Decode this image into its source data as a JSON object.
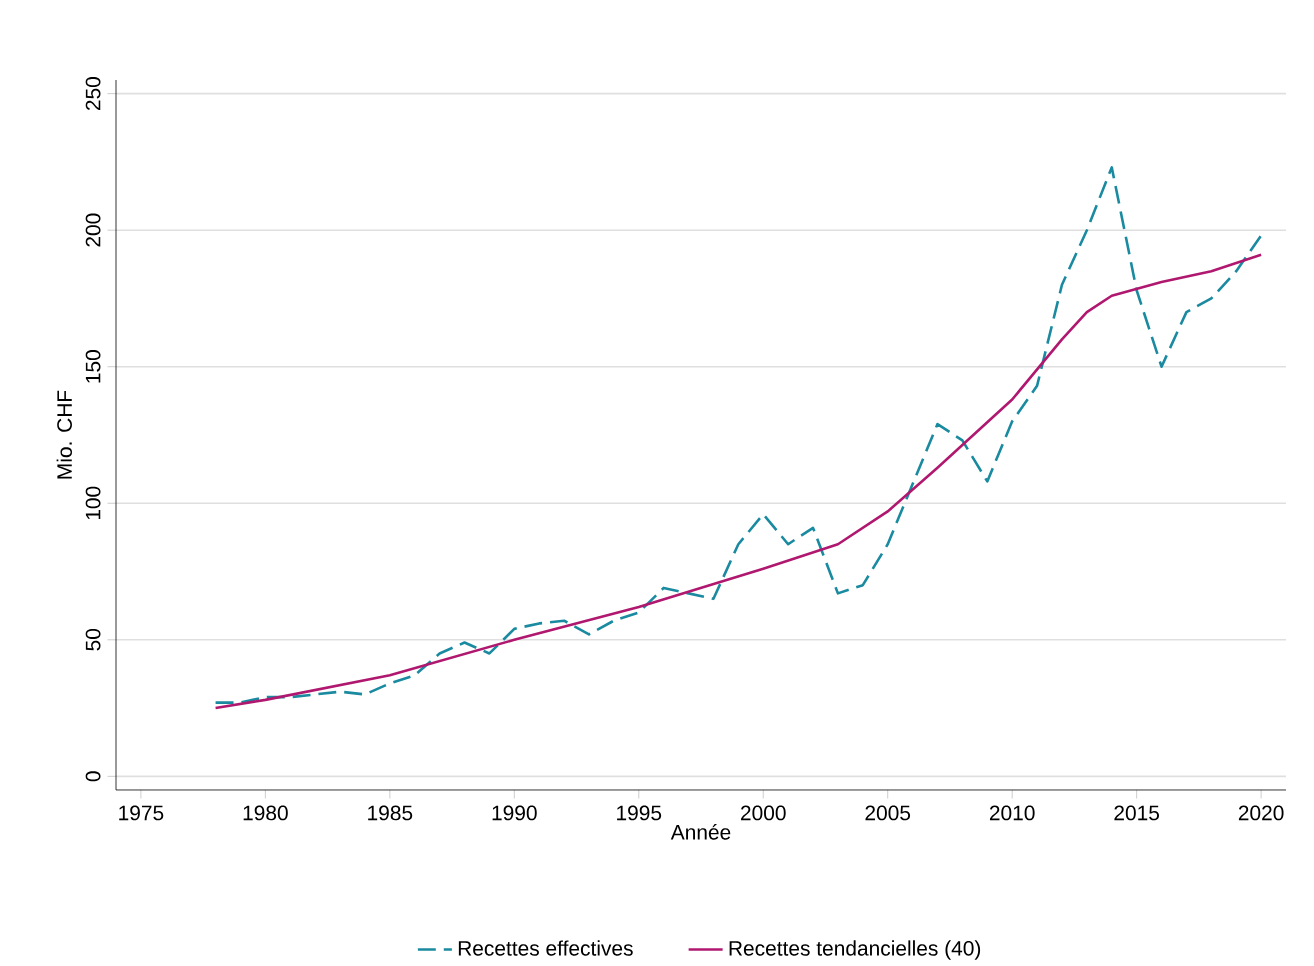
{
  "chart_data": {
    "type": "line",
    "xlabel": "Année",
    "ylabel": "Mio. CHF",
    "xlim": [
      1974,
      2021
    ],
    "ylim": [
      -5,
      255
    ],
    "xticks": [
      1975,
      1980,
      1985,
      1990,
      1995,
      2000,
      2005,
      2010,
      2015,
      2020
    ],
    "yticks": [
      0,
      50,
      100,
      150,
      200,
      250
    ],
    "grid": "y",
    "legend": "bottom",
    "marker": "none",
    "series": [
      {
        "name": "Recettes effectives",
        "color": "#1a8aa0",
        "line_style": "dashed",
        "x": [
          1978,
          1979,
          1980,
          1981,
          1982,
          1983,
          1984,
          1985,
          1986,
          1987,
          1988,
          1989,
          1990,
          1991,
          1992,
          1993,
          1994,
          1995,
          1996,
          1997,
          1998,
          1999,
          2000,
          2001,
          2002,
          2003,
          2004,
          2005,
          2006,
          2007,
          2008,
          2009,
          2010,
          2011,
          2012,
          2013,
          2014,
          2015,
          2016,
          2017,
          2018,
          2019,
          2020
        ],
        "values": [
          27,
          27,
          29,
          29,
          30,
          31,
          30,
          34,
          37,
          45,
          49,
          45,
          54,
          56,
          57,
          52,
          57,
          60,
          69,
          67,
          65,
          85,
          96,
          85,
          91,
          67,
          70,
          85,
          107,
          129,
          123,
          108,
          130,
          143,
          180,
          200,
          223,
          178,
          150,
          170,
          175,
          185,
          198
        ]
      },
      {
        "name": "Recettes tendancielles (40)",
        "color": "#b0176f",
        "line_style": "solid",
        "x": [
          1978,
          1980,
          1985,
          1990,
          1995,
          2000,
          2003,
          2005,
          2007,
          2010,
          2012,
          2013,
          2014,
          2016,
          2018,
          2020
        ],
        "values": [
          25,
          28,
          37,
          50,
          62,
          76,
          85,
          97,
          113,
          138,
          160,
          170,
          176,
          181,
          185,
          191
        ]
      }
    ]
  }
}
